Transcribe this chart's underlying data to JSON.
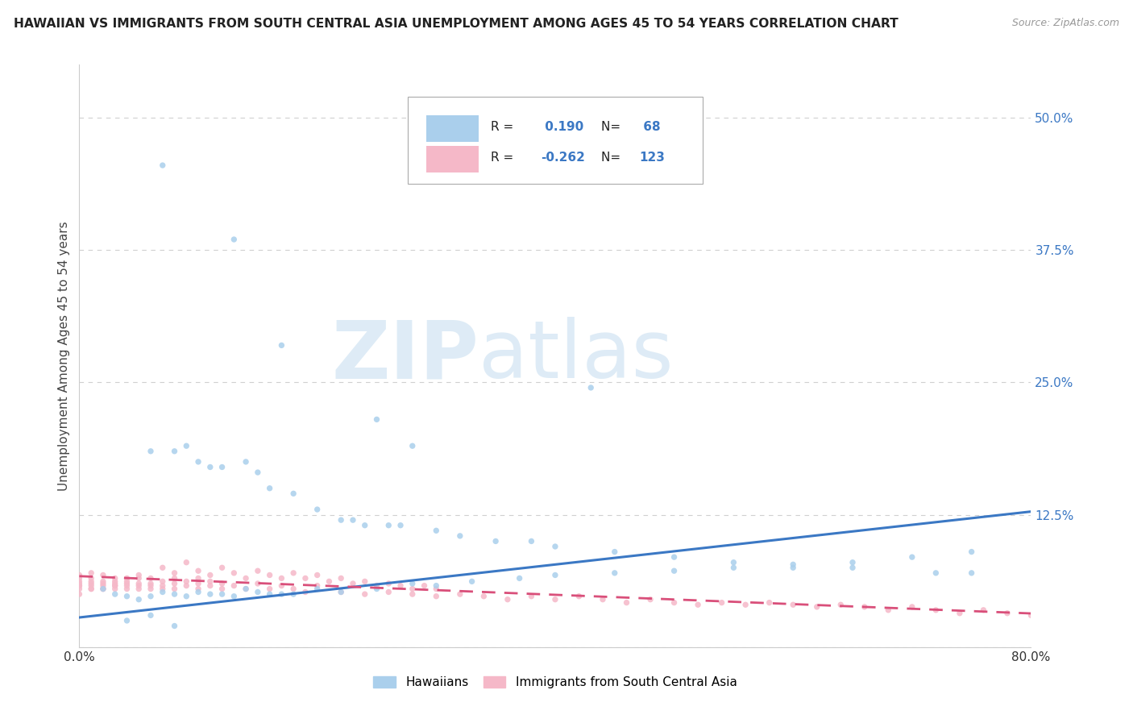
{
  "title": "HAWAIIAN VS IMMIGRANTS FROM SOUTH CENTRAL ASIA UNEMPLOYMENT AMONG AGES 45 TO 54 YEARS CORRELATION CHART",
  "source": "Source: ZipAtlas.com",
  "ylabel": "Unemployment Among Ages 45 to 54 years",
  "xlim": [
    0.0,
    0.8
  ],
  "ylim": [
    0.0,
    0.55
  ],
  "yticks": [
    0.0,
    0.125,
    0.25,
    0.375,
    0.5
  ],
  "ytick_labels": [
    "",
    "12.5%",
    "25.0%",
    "37.5%",
    "50.0%"
  ],
  "background_color": "#ffffff",
  "grid_color": "#d0d0d0",
  "hawaiian_color": "#aacfec",
  "immigrant_color": "#f5b8c8",
  "hawaiian_line_color": "#3b78c4",
  "immigrant_line_color": "#d94f7a",
  "R_hawaiian": 0.19,
  "N_hawaiian": 68,
  "R_immigrant": -0.262,
  "N_immigrant": 123,
  "legend_label_hawaiian": "Hawaiians",
  "legend_label_immigrant": "Immigrants from South Central Asia",
  "watermark_zip": "ZIP",
  "watermark_atlas": "atlas",
  "hawaiian_scatter_x": [
    0.07,
    0.13,
    0.17,
    0.25,
    0.28,
    0.43,
    0.06,
    0.08,
    0.09,
    0.1,
    0.11,
    0.12,
    0.14,
    0.15,
    0.16,
    0.18,
    0.2,
    0.22,
    0.23,
    0.24,
    0.26,
    0.27,
    0.3,
    0.32,
    0.35,
    0.38,
    0.4,
    0.45,
    0.5,
    0.55,
    0.6,
    0.65,
    0.72,
    0.02,
    0.03,
    0.04,
    0.05,
    0.06,
    0.07,
    0.08,
    0.09,
    0.1,
    0.11,
    0.12,
    0.13,
    0.14,
    0.15,
    0.16,
    0.17,
    0.18,
    0.2,
    0.22,
    0.25,
    0.28,
    0.3,
    0.33,
    0.37,
    0.4,
    0.45,
    0.5,
    0.55,
    0.6,
    0.65,
    0.7,
    0.75,
    0.04,
    0.06,
    0.08,
    0.75
  ],
  "hawaiian_scatter_y": [
    0.455,
    0.385,
    0.285,
    0.215,
    0.19,
    0.245,
    0.185,
    0.185,
    0.19,
    0.175,
    0.17,
    0.17,
    0.175,
    0.165,
    0.15,
    0.145,
    0.13,
    0.12,
    0.12,
    0.115,
    0.115,
    0.115,
    0.11,
    0.105,
    0.1,
    0.1,
    0.095,
    0.09,
    0.085,
    0.08,
    0.075,
    0.075,
    0.07,
    0.055,
    0.05,
    0.048,
    0.045,
    0.048,
    0.052,
    0.05,
    0.048,
    0.052,
    0.05,
    0.05,
    0.048,
    0.055,
    0.052,
    0.05,
    0.05,
    0.05,
    0.055,
    0.052,
    0.055,
    0.06,
    0.058,
    0.062,
    0.065,
    0.068,
    0.07,
    0.072,
    0.075,
    0.078,
    0.08,
    0.085,
    0.09,
    0.025,
    0.03,
    0.02,
    0.07
  ],
  "immigrant_scatter_x": [
    0.0,
    0.0,
    0.0,
    0.0,
    0.0,
    0.0,
    0.0,
    0.0,
    0.01,
    0.01,
    0.01,
    0.01,
    0.01,
    0.01,
    0.01,
    0.02,
    0.02,
    0.02,
    0.02,
    0.02,
    0.02,
    0.03,
    0.03,
    0.03,
    0.03,
    0.03,
    0.03,
    0.04,
    0.04,
    0.04,
    0.04,
    0.04,
    0.05,
    0.05,
    0.05,
    0.05,
    0.05,
    0.06,
    0.06,
    0.06,
    0.06,
    0.07,
    0.07,
    0.07,
    0.08,
    0.08,
    0.08,
    0.09,
    0.09,
    0.1,
    0.1,
    0.1,
    0.11,
    0.11,
    0.12,
    0.12,
    0.13,
    0.14,
    0.15,
    0.16,
    0.17,
    0.18,
    0.19,
    0.2,
    0.22,
    0.24,
    0.26,
    0.28,
    0.3,
    0.32,
    0.34,
    0.36,
    0.38,
    0.4,
    0.42,
    0.44,
    0.46,
    0.48,
    0.5,
    0.52,
    0.54,
    0.56,
    0.58,
    0.6,
    0.62,
    0.64,
    0.66,
    0.68,
    0.7,
    0.72,
    0.74,
    0.76,
    0.78,
    0.8,
    0.07,
    0.08,
    0.09,
    0.1,
    0.11,
    0.12,
    0.13,
    0.14,
    0.15,
    0.16,
    0.17,
    0.18,
    0.19,
    0.2,
    0.21,
    0.22,
    0.23,
    0.24,
    0.25,
    0.26,
    0.27,
    0.28,
    0.29,
    0.3
  ],
  "immigrant_scatter_y": [
    0.06,
    0.058,
    0.055,
    0.065,
    0.05,
    0.068,
    0.062,
    0.058,
    0.065,
    0.06,
    0.055,
    0.07,
    0.058,
    0.062,
    0.055,
    0.06,
    0.055,
    0.068,
    0.058,
    0.062,
    0.055,
    0.062,
    0.058,
    0.055,
    0.065,
    0.06,
    0.058,
    0.06,
    0.055,
    0.065,
    0.058,
    0.062,
    0.058,
    0.065,
    0.06,
    0.055,
    0.068,
    0.06,
    0.055,
    0.065,
    0.058,
    0.062,
    0.058,
    0.055,
    0.06,
    0.055,
    0.065,
    0.058,
    0.062,
    0.06,
    0.055,
    0.065,
    0.058,
    0.062,
    0.055,
    0.06,
    0.058,
    0.055,
    0.06,
    0.055,
    0.058,
    0.055,
    0.052,
    0.058,
    0.052,
    0.05,
    0.052,
    0.05,
    0.048,
    0.05,
    0.048,
    0.045,
    0.048,
    0.045,
    0.048,
    0.045,
    0.042,
    0.045,
    0.042,
    0.04,
    0.042,
    0.04,
    0.042,
    0.04,
    0.038,
    0.04,
    0.038,
    0.035,
    0.038,
    0.035,
    0.032,
    0.035,
    0.032,
    0.03,
    0.075,
    0.07,
    0.08,
    0.072,
    0.068,
    0.075,
    0.07,
    0.065,
    0.072,
    0.068,
    0.065,
    0.07,
    0.065,
    0.068,
    0.062,
    0.065,
    0.06,
    0.062,
    0.058,
    0.06,
    0.058,
    0.055,
    0.058,
    0.055
  ]
}
